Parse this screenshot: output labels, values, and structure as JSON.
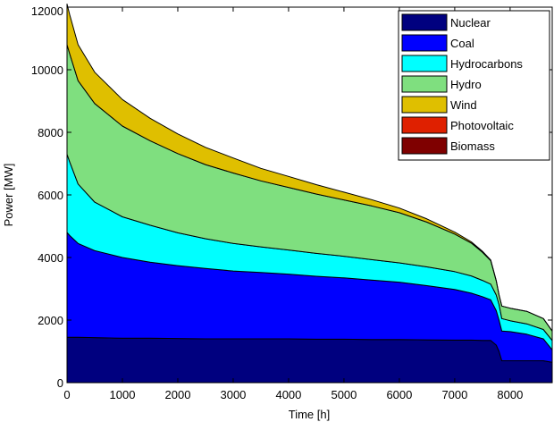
{
  "chart_data": {
    "type": "area",
    "stacked": true,
    "title": "",
    "xlabel": "Time [h]",
    "ylabel": "Power [MW]",
    "xlim": [
      0,
      8760
    ],
    "ylim": [
      0,
      12000
    ],
    "x_ticks": [
      0,
      1000,
      2000,
      3000,
      4000,
      5000,
      6000,
      7000,
      8000
    ],
    "y_ticks": [
      0,
      2000,
      4000,
      6000,
      8000,
      10000,
      12000
    ],
    "grid": false,
    "legend_position": "top-right",
    "x": [
      0,
      50,
      200,
      500,
      1000,
      1500,
      2000,
      2500,
      3000,
      3500,
      4000,
      4500,
      5000,
      5500,
      6000,
      6500,
      7000,
      7300,
      7500,
      7650,
      7750,
      7800,
      7850,
      8000,
      8300,
      8600,
      8760
    ],
    "series": [
      {
        "name": "Nuclear",
        "color": "#00007F",
        "values": [
          1450,
          1450,
          1450,
          1440,
          1420,
          1420,
          1410,
          1400,
          1400,
          1400,
          1400,
          1390,
          1390,
          1380,
          1380,
          1370,
          1360,
          1360,
          1350,
          1350,
          1200,
          1000,
          700,
          700,
          700,
          700,
          650
        ]
      },
      {
        "name": "Coal",
        "color": "#0000FF",
        "values": [
          3350,
          3250,
          3000,
          2780,
          2580,
          2430,
          2330,
          2250,
          2170,
          2120,
          2070,
          2010,
          1960,
          1900,
          1830,
          1730,
          1620,
          1500,
          1400,
          1300,
          1100,
          1000,
          950,
          930,
          850,
          700,
          400
        ]
      },
      {
        "name": "Hydrocarbons",
        "color": "#00FFFF",
        "values": [
          2500,
          2350,
          1900,
          1550,
          1300,
          1180,
          1050,
          950,
          880,
          820,
          770,
          730,
          690,
          650,
          620,
          600,
          570,
          550,
          520,
          500,
          500,
          500,
          400,
          350,
          330,
          300,
          300
        ]
      },
      {
        "name": "Hydro",
        "color": "#7FDF7F",
        "values": [
          3500,
          3450,
          3300,
          3150,
          2900,
          2700,
          2530,
          2370,
          2250,
          2110,
          2000,
          1900,
          1800,
          1720,
          1600,
          1430,
          1200,
          1050,
          900,
          750,
          450,
          300,
          400,
          400,
          400,
          350,
          300
        ]
      },
      {
        "name": "Wind",
        "color": "#DFBF00",
        "values": [
          1300,
          1250,
          1150,
          1000,
          850,
          720,
          630,
          550,
          480,
          400,
          350,
          300,
          250,
          200,
          150,
          100,
          60,
          40,
          30,
          20,
          10,
          0,
          0,
          0,
          0,
          0,
          0
        ]
      },
      {
        "name": "Photovoltaic",
        "color": "#DF2000",
        "values": [
          0,
          0,
          0,
          0,
          0,
          0,
          0,
          0,
          0,
          0,
          0,
          0,
          0,
          0,
          0,
          0,
          0,
          0,
          0,
          0,
          0,
          0,
          0,
          0,
          0,
          0,
          0
        ]
      },
      {
        "name": "Biomass",
        "color": "#7F0000",
        "values": [
          0,
          0,
          0,
          0,
          0,
          0,
          0,
          0,
          0,
          0,
          0,
          0,
          0,
          0,
          0,
          0,
          0,
          0,
          0,
          0,
          0,
          0,
          0,
          0,
          0,
          0,
          0
        ]
      }
    ]
  }
}
